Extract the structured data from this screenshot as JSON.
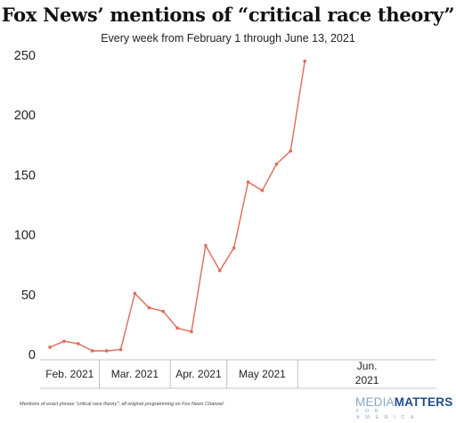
{
  "chart_data": {
    "type": "line",
    "title": "Fox News’ mentions of “critical race theory”",
    "subtitle": "Every week from February 1 through June 13, 2021",
    "ylim": [
      0,
      250
    ],
    "yticks": [
      0,
      50,
      100,
      150,
      200,
      250
    ],
    "grid": false,
    "color": "#e06a57",
    "x": [
      "2021-02-01",
      "2021-02-08",
      "2021-02-15",
      "2021-02-22",
      "2021-03-01",
      "2021-03-08",
      "2021-03-15",
      "2021-03-22",
      "2021-03-29",
      "2021-04-05",
      "2021-04-12",
      "2021-04-19",
      "2021-04-26",
      "2021-05-03",
      "2021-05-10",
      "2021-05-17",
      "2021-05-24",
      "2021-05-31",
      "2021-06-07"
    ],
    "series": [
      {
        "values": [
          6,
          11,
          9,
          3,
          3,
          4,
          51,
          39,
          36,
          22,
          19,
          91,
          70,
          89,
          144,
          137,
          159,
          170,
          245
        ]
      }
    ],
    "month_labels": [
      "Feb. 2021",
      "Mar. 2021",
      "Apr. 2021",
      "May 2021",
      "Jun. 2021"
    ],
    "month_spans": [
      {
        "start": 0,
        "end": 3
      },
      {
        "start": 4,
        "end": 8
      },
      {
        "start": 9,
        "end": 12
      },
      {
        "start": 13,
        "end": 17
      },
      {
        "start": 18,
        "end": 18
      }
    ]
  },
  "footnote": "Mentions of exact phrase “critical race theory”; all original programming on Fox News Channel.",
  "logo": {
    "part1": "MEDIA",
    "part2": "MATTERS",
    "tagline": "FOR AMERICA",
    "color_light": "#8aa6c8",
    "color_dark": "#1f4e8c"
  }
}
